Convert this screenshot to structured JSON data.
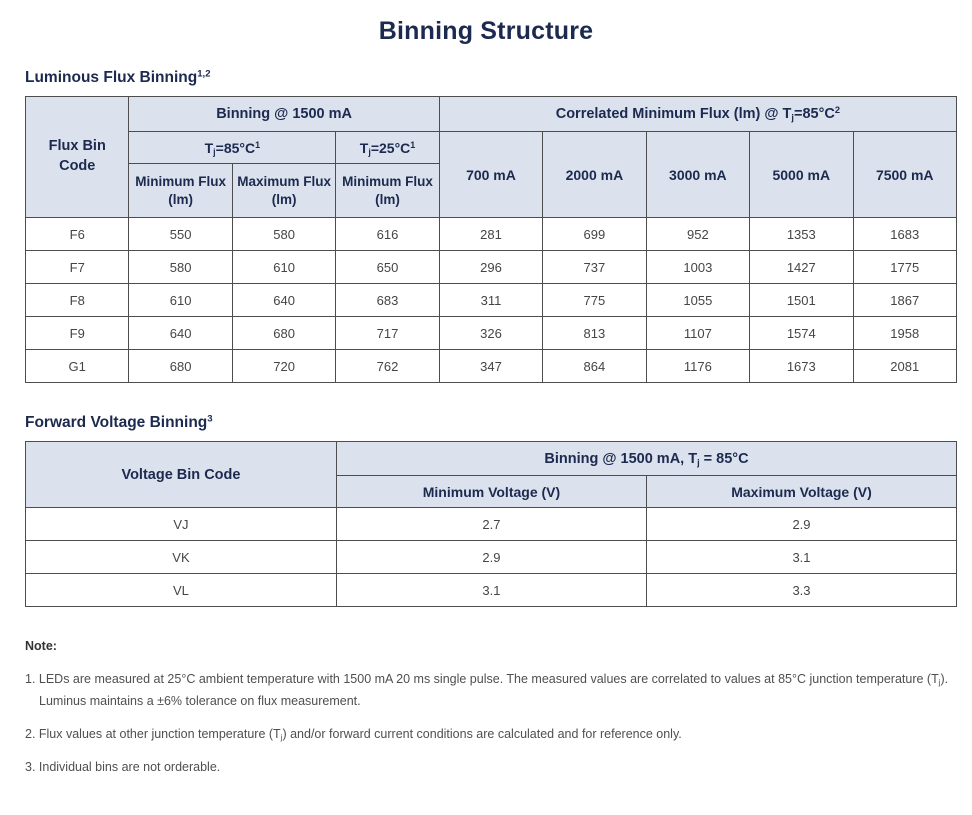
{
  "colors": {
    "navy": "#1b2a4e",
    "header_bg": "#dbe2ee",
    "border": "#4d4d4d",
    "body_text": "#454545",
    "note_text": "#4f4f4f"
  },
  "page_title": "Binning Structure",
  "flux_section": {
    "heading_parts": [
      {
        "t": "Luminous Flux Binning"
      },
      {
        "sup": "1,2"
      }
    ],
    "table": {
      "flux_bin_code": "Flux Bin Code",
      "binning_group": "Binning @ 1500 mA",
      "correlated_group_parts": [
        {
          "t": "Correlated Minimum Flux (lm) @ T"
        },
        {
          "sub": "j"
        },
        {
          "t": "=85°C"
        },
        {
          "sup": "2"
        }
      ],
      "tj85_parts": [
        {
          "t": "T"
        },
        {
          "sub": "j"
        },
        {
          "t": "=85°C"
        },
        {
          "sup": "1"
        }
      ],
      "tj25_parts": [
        {
          "t": "T"
        },
        {
          "sub": "j"
        },
        {
          "t": "=25°C"
        },
        {
          "sup": "1"
        }
      ],
      "col_min_flux": "Minimum Flux (lm)",
      "col_max_flux": "Maximum Flux (lm)",
      "col_min_flux_25": "Minimum Flux (lm)",
      "current_cols": [
        "700 mA",
        "2000 mA",
        "3000 mA",
        "5000 mA",
        "7500 mA"
      ],
      "rows": [
        {
          "code": "F6",
          "values": [
            "550",
            "580",
            "616",
            "281",
            "699",
            "952",
            "1353",
            "1683"
          ]
        },
        {
          "code": "F7",
          "values": [
            "580",
            "610",
            "650",
            "296",
            "737",
            "1003",
            "1427",
            "1775"
          ]
        },
        {
          "code": "F8",
          "values": [
            "610",
            "640",
            "683",
            "311",
            "775",
            "1055",
            "1501",
            "1867"
          ]
        },
        {
          "code": "F9",
          "values": [
            "640",
            "680",
            "717",
            "326",
            "813",
            "1107",
            "1574",
            "1958"
          ]
        },
        {
          "code": "G1",
          "values": [
            "680",
            "720",
            "762",
            "347",
            "864",
            "1176",
            "1673",
            "2081"
          ]
        }
      ]
    }
  },
  "voltage_section": {
    "heading_parts": [
      {
        "t": "Forward Voltage Binning"
      },
      {
        "sup": "3"
      }
    ],
    "table": {
      "voltage_bin_code": "Voltage Bin Code",
      "binning_group_parts": [
        {
          "t": "Binning @ 1500 mA, T"
        },
        {
          "sub": "j"
        },
        {
          "t": " = 85°C"
        }
      ],
      "col_min_v": "Minimum Voltage (V)",
      "col_max_v": "Maximum Voltage (V)",
      "rows": [
        {
          "code": "VJ",
          "values": [
            "2.7",
            "2.9"
          ]
        },
        {
          "code": "VK",
          "values": [
            "2.9",
            "3.1"
          ]
        },
        {
          "code": "VL",
          "values": [
            "3.1",
            "3.3"
          ]
        }
      ]
    }
  },
  "notes": {
    "label": "Note:",
    "items": [
      {
        "parts": [
          {
            "t": "1. LEDs are measured at 25°C ambient temperature with 1500 mA 20 ms single pulse. The measured values are correlated to values at 85°C junction temperature (T"
          },
          {
            "sub": "j"
          },
          {
            "t": "). Luminus maintains a ±6% tolerance on flux measurement."
          }
        ]
      },
      {
        "parts": [
          {
            "t": "2. Flux values at other junction temperature (T"
          },
          {
            "sub": "j"
          },
          {
            "t": ") and/or forward current conditions are calculated and for reference only."
          }
        ]
      },
      {
        "parts": [
          {
            "t": "3. Individual bins are not orderable."
          }
        ]
      }
    ]
  }
}
